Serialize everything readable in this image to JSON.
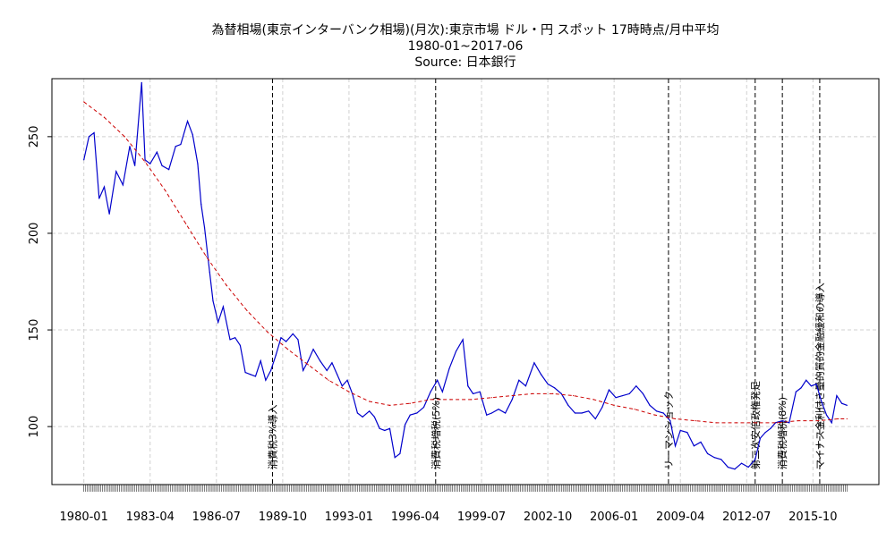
{
  "chart_data": {
    "type": "line",
    "title": "為替相場(東京インターバンク相場)(月次):東京市場 ドル・円 スポット 17時時点/月中平均",
    "subtitle": "1980-01~2017-06",
    "source": "Source: 日本銀行",
    "xlabel": "",
    "ylabel": "",
    "x_range": [
      "1980-01",
      "2017-06"
    ],
    "ylim": [
      70,
      280
    ],
    "grid": true,
    "x_tick_labels": [
      "1980-01",
      "1983-04",
      "1986-07",
      "1989-10",
      "1993-01",
      "1996-04",
      "1999-07",
      "2002-10",
      "2006-01",
      "2009-04",
      "2012-07",
      "2015-10"
    ],
    "y_ticks": [
      100,
      150,
      200,
      250
    ],
    "series": [
      {
        "color": "#0000cc",
        "style": "solid",
        "x": [
          "1980-01",
          "1980-04",
          "1980-07",
          "1980-10",
          "1981-01",
          "1981-04",
          "1981-08",
          "1981-12",
          "1982-04",
          "1982-07",
          "1982-11",
          "1983-01",
          "1983-04",
          "1983-08",
          "1983-11",
          "1984-03",
          "1984-07",
          "1984-10",
          "1985-02",
          "1985-05",
          "1985-08",
          "1985-10",
          "1985-12",
          "1986-03",
          "1986-05",
          "1986-08",
          "1986-11",
          "1987-03",
          "1987-06",
          "1987-09",
          "1987-12",
          "1988-03",
          "1988-06",
          "1988-09",
          "1988-12",
          "1989-03",
          "1989-06",
          "1989-09",
          "1989-12",
          "1990-04",
          "1990-07",
          "1990-10",
          "1991-01",
          "1991-04",
          "1991-08",
          "1991-12",
          "1992-03",
          "1992-06",
          "1992-09",
          "1992-12",
          "1993-03",
          "1993-06",
          "1993-09",
          "1994-01",
          "1994-04",
          "1994-07",
          "1994-10",
          "1995-01",
          "1995-04",
          "1995-07",
          "1995-10",
          "1996-01",
          "1996-05",
          "1996-09",
          "1997-01",
          "1997-05",
          "1997-08",
          "1997-12",
          "1998-04",
          "1998-08",
          "1998-11",
          "1999-02",
          "1999-06",
          "1999-10",
          "2000-01",
          "2000-05",
          "2000-09",
          "2001-01",
          "2001-05",
          "2001-09",
          "2002-02",
          "2002-06",
          "2002-10",
          "2003-02",
          "2003-06",
          "2003-10",
          "2004-02",
          "2004-06",
          "2004-10",
          "2005-02",
          "2005-06",
          "2005-10",
          "2006-02",
          "2006-06",
          "2006-10",
          "2007-02",
          "2007-06",
          "2007-10",
          "2008-02",
          "2008-06",
          "2008-10",
          "2009-01",
          "2009-04",
          "2009-08",
          "2009-12",
          "2010-04",
          "2010-08",
          "2010-12",
          "2011-04",
          "2011-08",
          "2011-12",
          "2012-04",
          "2012-08",
          "2012-12",
          "2013-03",
          "2013-06",
          "2013-09",
          "2013-12",
          "2014-04",
          "2014-08",
          "2014-12",
          "2015-03",
          "2015-06",
          "2015-09",
          "2015-12",
          "2016-03",
          "2016-06",
          "2016-09",
          "2016-12",
          "2017-03",
          "2017-06"
        ],
        "values": [
          238,
          250,
          252,
          218,
          224,
          210,
          232,
          225,
          245,
          235,
          278,
          238,
          236,
          242,
          235,
          233,
          245,
          246,
          258,
          251,
          236,
          215,
          203,
          180,
          165,
          154,
          162,
          145,
          146,
          142,
          128,
          127,
          126,
          134,
          124,
          129,
          137,
          146,
          144,
          148,
          145,
          129,
          134,
          140,
          134,
          129,
          133,
          127,
          121,
          124,
          117,
          107,
          105,
          108,
          105,
          99,
          98,
          99,
          84,
          86,
          101,
          106,
          107,
          110,
          118,
          124,
          118,
          130,
          139,
          145,
          121,
          117,
          118,
          106,
          107,
          109,
          107,
          114,
          124,
          121,
          133,
          127,
          122,
          120,
          117,
          111,
          107,
          107,
          108,
          104,
          110,
          119,
          115,
          116,
          117,
          121,
          117,
          111,
          108,
          107,
          103,
          90,
          98,
          97,
          90,
          92,
          86,
          84,
          83,
          79,
          78,
          81,
          79,
          83,
          94,
          97,
          99,
          102,
          103,
          102,
          118,
          120,
          124,
          121,
          122,
          113,
          106,
          102,
          116,
          112,
          111
        ]
      },
      {
        "color": "#cc0000",
        "style": "dashed",
        "x": [
          "1980-01",
          "1981-01",
          "1982-01",
          "1983-01",
          "1984-01",
          "1985-01",
          "1986-01",
          "1987-01",
          "1988-01",
          "1989-01",
          "1990-01",
          "1991-01",
          "1992-01",
          "1993-01",
          "1994-01",
          "1995-01",
          "1996-01",
          "1997-01",
          "1998-01",
          "1999-01",
          "2000-01",
          "2001-01",
          "2002-01",
          "2003-01",
          "2004-01",
          "2005-01",
          "2006-01",
          "2007-01",
          "2008-01",
          "2009-01",
          "2010-01",
          "2011-01",
          "2012-01",
          "2013-01",
          "2014-01",
          "2015-01",
          "2016-01",
          "2017-01",
          "2017-06"
        ],
        "values": [
          268,
          260,
          250,
          237,
          222,
          205,
          188,
          173,
          160,
          149,
          140,
          132,
          124,
          118,
          113,
          111,
          112,
          114,
          114,
          114,
          115,
          116,
          117,
          117,
          116,
          114,
          111,
          109,
          106,
          104,
          103,
          102,
          102,
          102,
          102,
          103,
          103,
          104,
          104
        ]
      }
    ],
    "events": [
      {
        "x": "1989-04",
        "label": "消費税3%導入"
      },
      {
        "x": "1997-04",
        "label": "消費税増税(5%)"
      },
      {
        "x": "2008-09",
        "label": "リーマンショック"
      },
      {
        "x": "2012-12",
        "label": "第二次安倍政権発足"
      },
      {
        "x": "2014-04",
        "label": "消費税増税(8%)"
      },
      {
        "x": "2016-02",
        "label": "マイナス金利付き量的質的金融緩和の導入"
      }
    ]
  }
}
